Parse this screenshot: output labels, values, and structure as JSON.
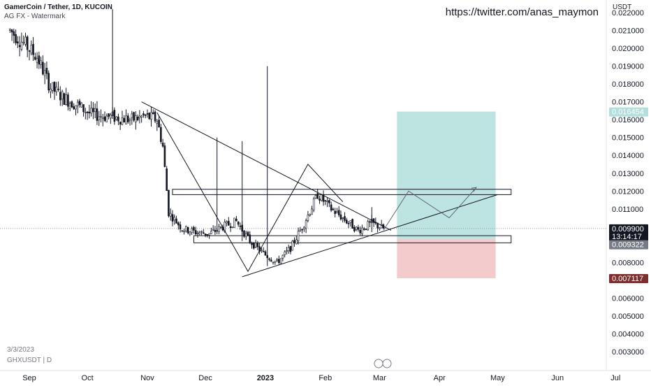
{
  "header": {
    "symbol": "GamerCoin / Tether, 1D, KUCOIN",
    "indicator": "AG FX - Watermark"
  },
  "watermark": "https://twitter.com/anas_maymon",
  "footer": {
    "date": "3/3/2023",
    "ticker": "GHXUSDT | D"
  },
  "colors": {
    "up": "#26a69a",
    "down": "#ef5350",
    "candle": "#131722",
    "target_zone": "#b2dfdb",
    "stop_zone": "#f3c5c8",
    "current_tag": "#131722",
    "target_tag": "#b2dfdb",
    "stop_tag": "#7b2f2f"
  },
  "chart_data": {
    "type": "candlestick",
    "title": "GamerCoin / Tether, 1D, KUCOIN",
    "yaxis": {
      "unit": "USDT",
      "ticks": [
        "0.022000",
        "0.021000",
        "0.020000",
        "0.019000",
        "0.018000",
        "0.017000",
        "0.016000",
        "0.015000",
        "0.014000",
        "0.013000",
        "0.012000",
        "0.011000",
        "0.010000",
        "0.009000",
        "0.008000",
        "0.007000",
        "0.006000",
        "0.005000",
        "0.004000",
        "0.003000"
      ],
      "range": [
        0.0025,
        0.0221
      ]
    },
    "xaxis": {
      "ticks": [
        "Sep",
        "Oct",
        "Nov",
        "Dec",
        "2023",
        "Feb",
        "Mar",
        "Apr",
        "May",
        "Jun",
        "Jul"
      ]
    },
    "price_labels": [
      {
        "name": "target",
        "value": "0.016454"
      },
      {
        "name": "last-price",
        "value": "0.009900",
        "sub": "13:14:17"
      },
      {
        "name": "entry",
        "value": "0.009322"
      },
      {
        "name": "stop",
        "value": "0.007117"
      }
    ],
    "zones": {
      "target": {
        "from": 0.009322,
        "to": 0.016454,
        "x_start": "2023-03-10",
        "x_end": "2023-04-30"
      },
      "stop": {
        "from": 0.007117,
        "to": 0.009322,
        "x_start": "2023-03-10",
        "x_end": "2023-04-30"
      }
    },
    "levels": [
      {
        "name": "resistance-box",
        "from": 0.0118,
        "to": 0.0121
      },
      {
        "name": "support-box",
        "from": 0.0091,
        "to": 0.0095
      }
    ],
    "price_path": [
      [
        "2022-08-22",
        0.021
      ],
      [
        "2022-08-29",
        0.0203
      ],
      [
        "2022-09-05",
        0.0195
      ],
      [
        "2022-09-12",
        0.0178
      ],
      [
        "2022-09-19",
        0.0172
      ],
      [
        "2022-09-26",
        0.0168
      ],
      [
        "2022-10-03",
        0.0163
      ],
      [
        "2022-10-10",
        0.0162
      ],
      [
        "2022-10-17",
        0.0161
      ],
      [
        "2022-10-24",
        0.016
      ],
      [
        "2022-10-31",
        0.0162
      ],
      [
        "2022-11-06",
        0.016
      ],
      [
        "2022-11-09",
        0.0145
      ],
      [
        "2022-11-12",
        0.0108
      ],
      [
        "2022-11-19",
        0.0099
      ],
      [
        "2022-11-26",
        0.0097
      ],
      [
        "2022-12-03",
        0.0096
      ],
      [
        "2022-12-10",
        0.01
      ],
      [
        "2022-12-17",
        0.0103
      ],
      [
        "2022-12-24",
        0.0092
      ],
      [
        "2022-12-31",
        0.0085
      ],
      [
        "2023-01-07",
        0.008
      ],
      [
        "2023-01-14",
        0.0088
      ],
      [
        "2023-01-21",
        0.0102
      ],
      [
        "2023-01-28",
        0.0118
      ],
      [
        "2023-02-04",
        0.011
      ],
      [
        "2023-02-11",
        0.0104
      ],
      [
        "2023-02-18",
        0.0098
      ],
      [
        "2023-02-25",
        0.0102
      ],
      [
        "2023-03-03",
        0.0099
      ]
    ],
    "projection": [
      [
        "2023-03-03",
        0.0098
      ],
      [
        "2023-03-16",
        0.012
      ],
      [
        "2023-04-06",
        0.0105
      ],
      [
        "2023-04-20",
        0.0122
      ]
    ],
    "trendlines": [
      {
        "name": "descending-trendline",
        "from": [
          "2022-10-29",
          0.017
        ],
        "to": [
          "2023-03-07",
          0.0098
        ]
      },
      {
        "name": "ascending-trendline",
        "from": [
          "2022-12-20",
          0.0072
        ],
        "to": [
          "2023-05-01",
          0.0118
        ]
      }
    ],
    "grid": false,
    "legend": "top-left"
  }
}
